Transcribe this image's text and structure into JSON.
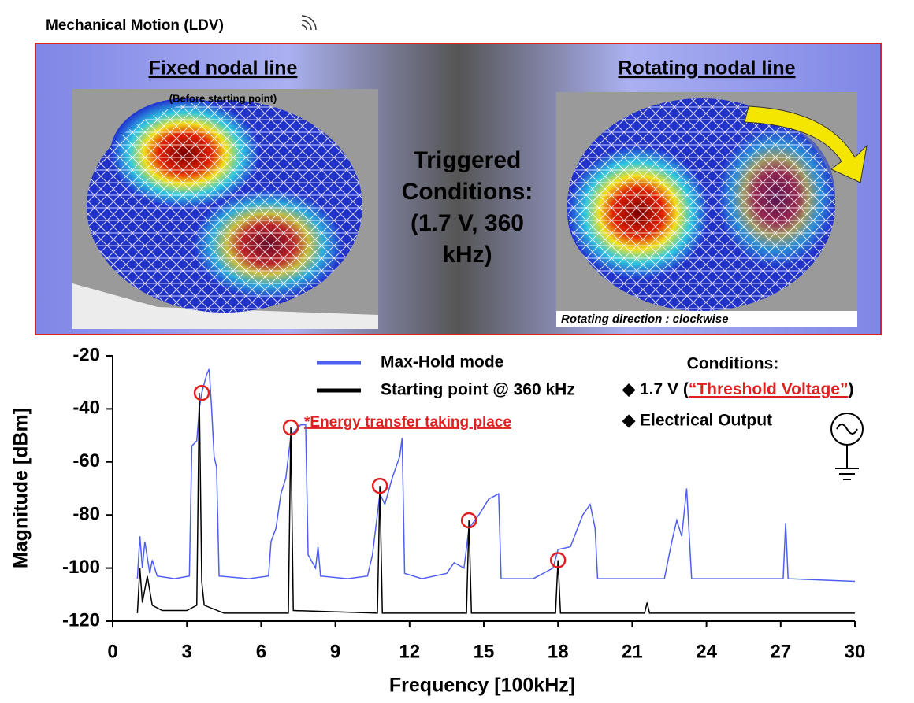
{
  "panel": {
    "heading": "Mechanical Motion (LDV)",
    "left_title": "Fixed nodal line",
    "left_note": "(Before starting point)",
    "right_title": "Rotating nodal line",
    "right_note": "Rotating direction : clockwise",
    "center_lines": [
      "Triggered",
      "Conditions:",
      "(1.7 V, 360",
      "kHz)"
    ]
  },
  "chart_data": {
    "type": "line",
    "xlabel": "Frequency [100kHz]",
    "ylabel": "Magnitude [dBm]",
    "xlim": [
      0,
      30
    ],
    "ylim": [
      -120,
      -20
    ],
    "xticks": [
      0,
      3,
      6,
      9,
      12,
      15,
      18,
      21,
      24,
      27,
      30
    ],
    "yticks": [
      -20,
      -40,
      -60,
      -80,
      -100,
      -120
    ],
    "grid": false,
    "legend": "top",
    "series": [
      {
        "name": "Max-Hold mode",
        "color": "#4f5ff0",
        "x": [
          1.0,
          1.1,
          1.2,
          1.3,
          1.5,
          1.6,
          1.8,
          2.5,
          3.1,
          3.2,
          3.4,
          3.5,
          3.6,
          3.8,
          3.9,
          4.0,
          4.1,
          4.2,
          4.3,
          5.5,
          6.3,
          6.4,
          6.6,
          6.8,
          7.0,
          7.2,
          7.4,
          7.6,
          7.8,
          7.9,
          8.2,
          8.3,
          8.4,
          9.5,
          10.3,
          10.5,
          10.8,
          11.0,
          11.3,
          11.6,
          11.7,
          11.8,
          12.5,
          13.5,
          13.8,
          14.2,
          14.4,
          14.8,
          15.2,
          15.6,
          15.7,
          17.0,
          17.8,
          18.0,
          18.5,
          19.0,
          19.3,
          19.5,
          19.6,
          20.5,
          22.3,
          22.6,
          22.8,
          23.0,
          23.2,
          23.4,
          25.0,
          27.1,
          27.2,
          27.3,
          30.0
        ],
        "values": [
          -104,
          -88,
          -100,
          -90,
          -102,
          -97,
          -103,
          -104,
          -103,
          -54,
          -52,
          -40,
          -34,
          -27,
          -25,
          -40,
          -58,
          -62,
          -103,
          -104,
          -103,
          -90,
          -85,
          -72,
          -66,
          -50,
          -48,
          -46,
          -46,
          -95,
          -100,
          -92,
          -103,
          -104,
          -103,
          -95,
          -72,
          -76,
          -66,
          -58,
          -51,
          -102,
          -104,
          -102,
          -98,
          -100,
          -85,
          -80,
          -74,
          -72,
          -104,
          -104,
          -100,
          -93,
          -92,
          -80,
          -76,
          -85,
          -104,
          -104,
          -104,
          -90,
          -82,
          -88,
          -70,
          -104,
          -104,
          -104,
          -83,
          -104,
          -105
        ]
      },
      {
        "name": "Starting point @ 360 kHz",
        "color": "#000000",
        "x": [
          1.0,
          1.1,
          1.2,
          1.4,
          1.6,
          2.0,
          3.0,
          3.4,
          3.5,
          3.6,
          3.7,
          4.5,
          7.1,
          7.2,
          7.3,
          10.7,
          10.8,
          10.9,
          14.3,
          14.4,
          14.5,
          17.9,
          18.0,
          18.1,
          21.5,
          21.6,
          21.7,
          30.0
        ],
        "values": [
          -117,
          -100,
          -113,
          -103,
          -114,
          -116,
          -116,
          -114,
          -34,
          -105,
          -114,
          -117,
          -117,
          -47,
          -116,
          -117,
          -69,
          -117,
          -117,
          -82,
          -117,
          -117,
          -97,
          -117,
          -117,
          -113,
          -117,
          -117
        ]
      }
    ],
    "markers": {
      "color": "#e02020",
      "x": [
        3.6,
        7.2,
        10.8,
        14.4,
        18.0
      ],
      "values": [
        -34,
        -47,
        -69,
        -82,
        -97
      ]
    },
    "annotations": {
      "energy": "*Energy transfer taking place",
      "conditions": "Conditions:",
      "voltage_pre": "◆ 1.7 V (",
      "voltage_red": "“Threshold Voltage”",
      "voltage_post": ")",
      "output": "◆ Electrical Output"
    }
  }
}
